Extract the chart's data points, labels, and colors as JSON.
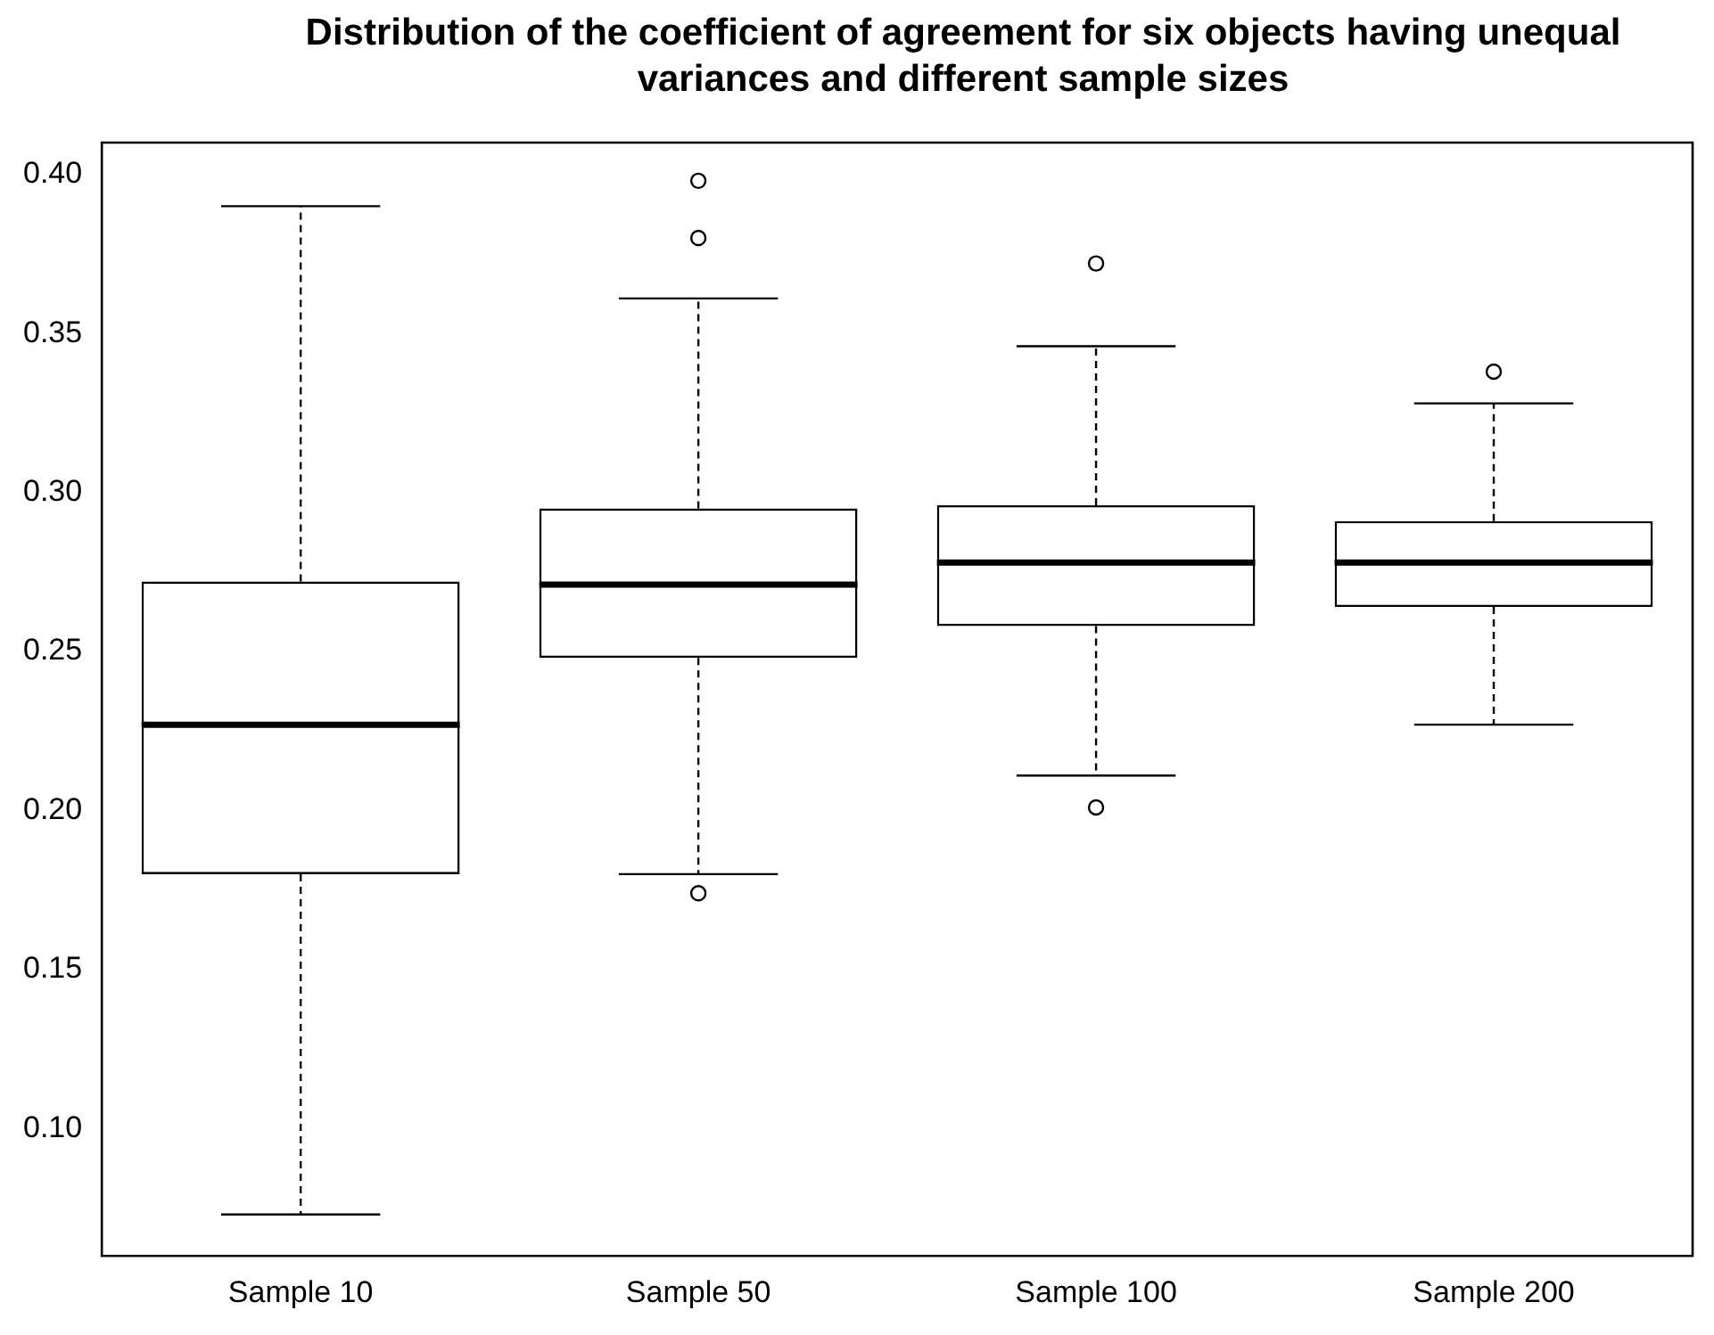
{
  "chart_data": {
    "type": "box",
    "title": "Distribution of the coefficient of agreement for six objects having unequal variances and different sample sizes",
    "categories": [
      "Sample 10",
      "Sample 50",
      "Sample 100",
      "Sample 200"
    ],
    "boxes": [
      {
        "low": 0.073,
        "q1": 0.18,
        "median": 0.227,
        "q3": 0.272,
        "high": 0.39
      },
      {
        "low": 0.18,
        "q1": 0.248,
        "median": 0.271,
        "q3": 0.295,
        "high": 0.361,
        "outliers": [
          0.398,
          0.38,
          0.174
        ]
      },
      {
        "low": 0.211,
        "q1": 0.258,
        "median": 0.278,
        "q3": 0.296,
        "high": 0.346,
        "outliers": [
          0.372,
          0.201
        ]
      },
      {
        "low": 0.227,
        "q1": 0.264,
        "median": 0.278,
        "q3": 0.291,
        "high": 0.328,
        "outliers": [
          0.338
        ]
      }
    ],
    "ylim": [
      0.06,
      0.41
    ],
    "yticks": [
      {
        "value": 0.1,
        "label": "0.10"
      },
      {
        "value": 0.15,
        "label": "0.15"
      },
      {
        "value": 0.2,
        "label": "0.20"
      },
      {
        "value": 0.25,
        "label": "0.25"
      },
      {
        "value": 0.3,
        "label": "0.30"
      },
      {
        "value": 0.35,
        "label": "0.35"
      },
      {
        "value": 0.4,
        "label": "0.40"
      }
    ],
    "grid": false,
    "legend": false,
    "color": "#000000"
  }
}
